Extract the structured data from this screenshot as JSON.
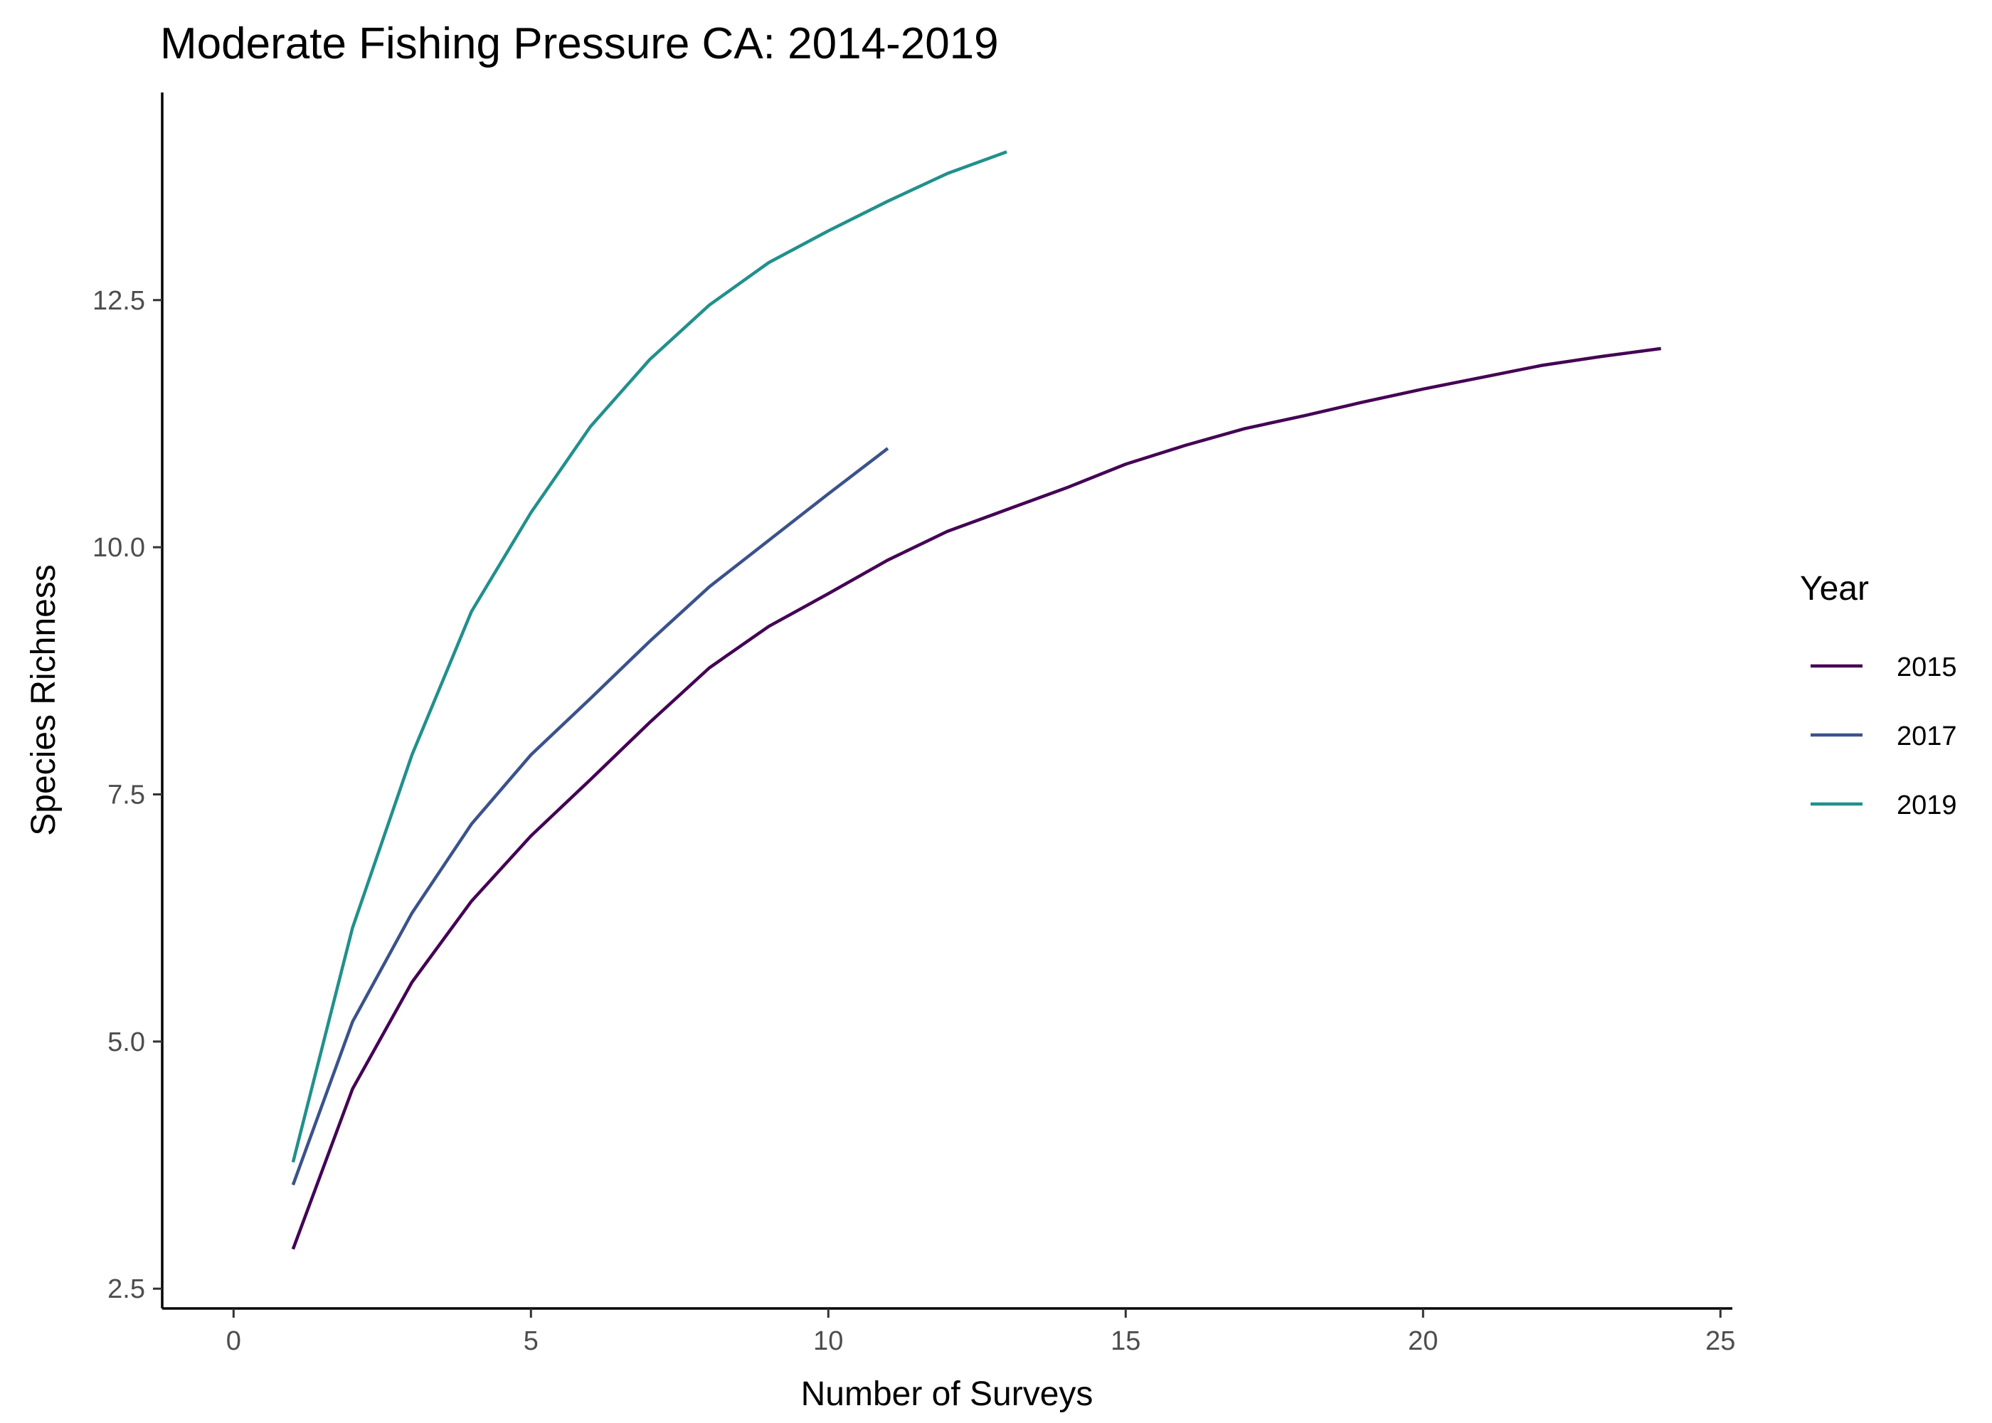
{
  "chart_data": {
    "type": "line",
    "title": "Moderate Fishing Pressure CA: 2014-2019",
    "xlabel": "Number of Surveys",
    "ylabel": "Species Richness",
    "xlim": [
      -1.2,
      25.2
    ],
    "ylim": [
      2.3,
      14.6
    ],
    "xticks": [
      0,
      5,
      10,
      15,
      20,
      25
    ],
    "xtick_labels": [
      "0",
      "5",
      "10",
      "15",
      "20",
      "25"
    ],
    "yticks": [
      2.5,
      5.0,
      7.5,
      10.0,
      12.5
    ],
    "ytick_labels": [
      "2.5",
      "5.0",
      "7.5",
      "10.0",
      "12.5"
    ],
    "grid": false,
    "legend": {
      "title": "Year",
      "position": "right"
    },
    "series": [
      {
        "name": "2015",
        "color": "#440154",
        "x": [
          1,
          2,
          3,
          4,
          5,
          6,
          7,
          8,
          9,
          10,
          11,
          12,
          13,
          14,
          15,
          16,
          17,
          18,
          19,
          20,
          21,
          22,
          23,
          24
        ],
        "y": [
          2.9,
          4.52,
          5.6,
          6.42,
          7.08,
          7.65,
          8.23,
          8.78,
          9.2,
          9.53,
          9.87,
          10.16,
          10.38,
          10.6,
          10.84,
          11.03,
          11.2,
          11.33,
          11.47,
          11.6,
          11.72,
          11.84,
          11.93,
          12.01
        ]
      },
      {
        "name": "2017",
        "color": "#3b528b",
        "x": [
          1,
          2,
          3,
          4,
          5,
          6,
          7,
          8,
          9,
          10,
          11
        ],
        "y": [
          3.55,
          5.2,
          6.3,
          7.2,
          7.9,
          8.47,
          9.05,
          9.6,
          10.07,
          10.54,
          11.0
        ]
      },
      {
        "name": "2019",
        "color": "#21908c",
        "x": [
          1,
          2,
          3,
          4,
          5,
          6,
          7,
          8,
          9,
          10,
          11,
          12,
          13
        ],
        "y": [
          3.78,
          6.15,
          7.9,
          9.35,
          10.35,
          11.22,
          11.9,
          12.45,
          12.88,
          13.2,
          13.5,
          13.78,
          14.0
        ]
      }
    ]
  }
}
